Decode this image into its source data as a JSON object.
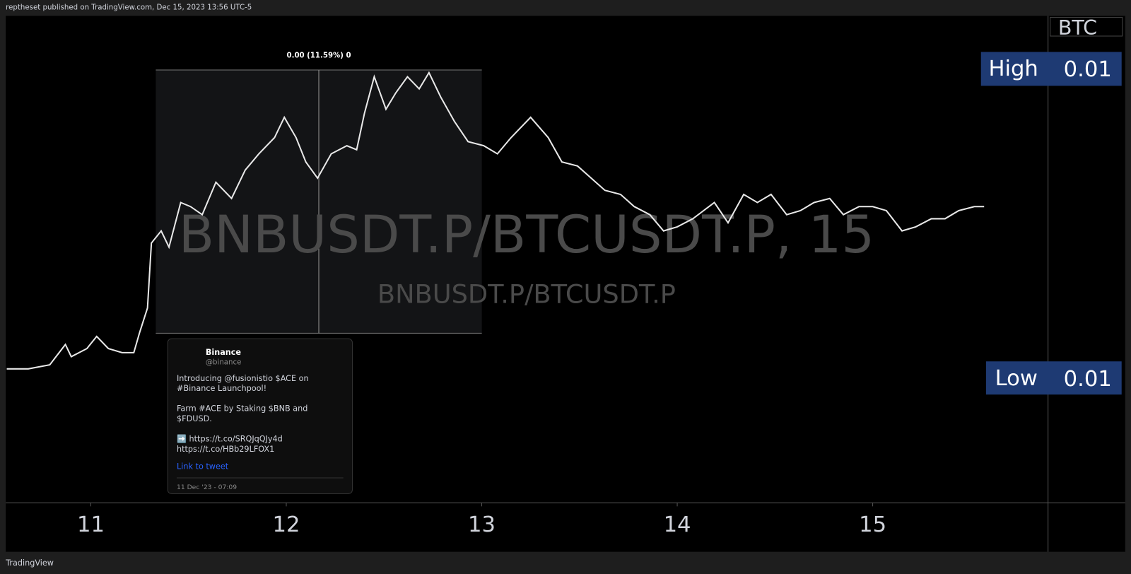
{
  "header": {
    "published": "reptheset published on TradingView.com, Dec 15, 2023 13:56 UTC-5"
  },
  "chart_data": {
    "type": "line",
    "watermark": "BNBUSDT.P/BTCUSDT.P, 15",
    "watermark_sub": "BNBUSDT.P/BTCUSDT.P",
    "measure_label": "0.00 (11.59%) 0",
    "currency": "BTC",
    "high_label": "High",
    "high_value": 0.01,
    "low_label": "Low",
    "low_value": 0.01,
    "xlim": [
      10.565,
      15.897
    ],
    "xticks": [
      11,
      12,
      13,
      14,
      15
    ],
    "ylim": [
      0.00518,
      0.00638
    ],
    "series": [
      {
        "color": "#e8e8e8",
        "x": [
          10.57,
          10.68,
          10.79,
          10.87,
          10.9,
          10.98,
          11.03,
          11.09,
          11.16,
          11.22,
          11.25,
          11.29,
          11.31,
          11.36,
          11.4,
          11.46,
          11.51,
          11.57,
          11.64,
          11.72,
          11.79,
          11.86,
          11.94,
          11.99,
          12.05,
          12.1,
          12.16,
          12.23,
          12.31,
          12.36,
          12.4,
          12.45,
          12.51,
          12.56,
          12.62,
          12.68,
          12.73,
          12.79,
          12.86,
          12.93,
          13.01,
          13.08,
          13.15,
          13.25,
          13.34,
          13.41,
          13.49,
          13.56,
          13.63,
          13.71,
          13.78,
          13.86,
          13.93,
          14.0,
          14.08,
          14.19,
          14.26,
          14.34,
          14.41,
          14.48,
          14.56,
          14.63,
          14.7,
          14.78,
          14.85,
          14.93,
          15.0,
          15.07,
          15.15,
          15.22,
          15.3,
          15.37,
          15.44,
          15.52,
          15.57
        ],
        "values": [
          0.00551,
          0.00551,
          0.00552,
          0.00557,
          0.00554,
          0.00556,
          0.00559,
          0.00556,
          0.00555,
          0.00555,
          0.0056,
          0.00566,
          0.00582,
          0.00585,
          0.00581,
          0.00592,
          0.00591,
          0.00589,
          0.00597,
          0.00593,
          0.006,
          0.00604,
          0.00608,
          0.00613,
          0.00608,
          0.00602,
          0.00598,
          0.00604,
          0.00606,
          0.00605,
          0.00614,
          0.00623,
          0.00615,
          0.00619,
          0.00623,
          0.0062,
          0.00624,
          0.00618,
          0.00612,
          0.00607,
          0.00606,
          0.00604,
          0.00608,
          0.00613,
          0.00608,
          0.00602,
          0.00601,
          0.00598,
          0.00595,
          0.00594,
          0.00591,
          0.00589,
          0.00585,
          0.00586,
          0.00588,
          0.00592,
          0.00587,
          0.00594,
          0.00592,
          0.00594,
          0.00589,
          0.0059,
          0.00592,
          0.00593,
          0.00589,
          0.00591,
          0.00591,
          0.0059,
          0.00585,
          0.00586,
          0.00588,
          0.00588,
          0.0059,
          0.00591,
          0.00591
        ]
      }
    ]
  },
  "tweet": {
    "author": "Binance",
    "handle": "@binance",
    "paragraphs": [
      "Introducing @fusionistio $ACE on #Binance Launchpool!",
      "Farm #ACE by Staking $BNB and $FDUSD.",
      "➡️ https://t.co/SRQJqQJy4d https://t.co/HBb29LFOX1"
    ],
    "link": "Link to tweet",
    "date": "11 Dec '23 - 07:09"
  },
  "footer": {
    "brand": "TradingView"
  }
}
